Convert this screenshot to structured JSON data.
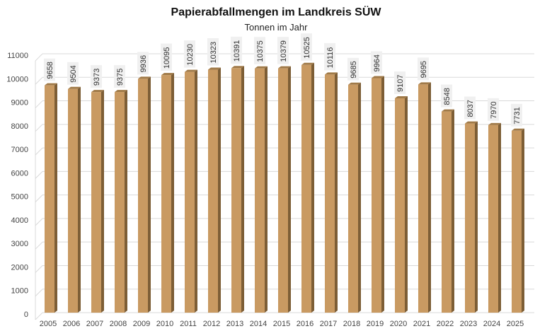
{
  "chart_data": {
    "type": "bar",
    "title": "Papierabfallmengen im Landkreis SÜW",
    "subtitle": "Tonnen im Jahr",
    "xlabel": "",
    "ylabel": "",
    "categories": [
      "2005",
      "2006",
      "2007",
      "2008",
      "2009",
      "2010",
      "2011",
      "2012",
      "2013",
      "2014",
      "2015",
      "2016",
      "2017",
      "2018",
      "2019",
      "2020",
      "2021",
      "2022",
      "2023",
      "2024",
      "2025"
    ],
    "values": [
      9658,
      9504,
      9373,
      9375,
      9936,
      10095,
      10230,
      10323,
      10391,
      10375,
      10379,
      10525,
      10116,
      9685,
      9964,
      9107,
      9695,
      8548,
      8037,
      7970,
      7731
    ],
    "ylim": [
      0,
      11000
    ],
    "yticks": [
      0,
      1000,
      2000,
      3000,
      4000,
      5000,
      6000,
      7000,
      8000,
      9000,
      10000,
      11000
    ],
    "grid": true,
    "legend": "none",
    "style": "3d-columns",
    "colors": {
      "bar_front": "#c99a62",
      "bar_side": "#7d5e36",
      "bar_top": "#a07a48",
      "grid": "#d9d9d9",
      "label_bg": "#f0f0f0"
    }
  }
}
